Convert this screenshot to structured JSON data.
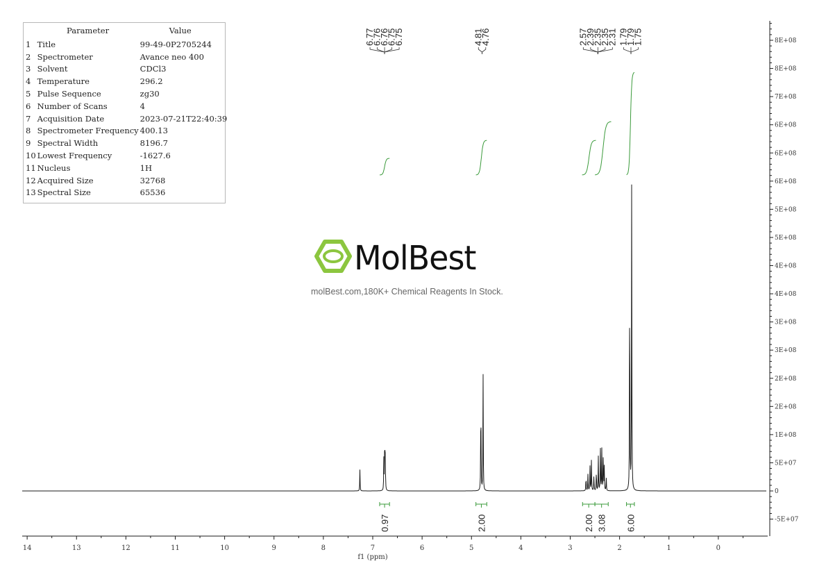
{
  "parameters": {
    "header": {
      "param": "Parameter",
      "value": "Value"
    },
    "rows": [
      {
        "idx": "1",
        "name": "Title",
        "value": "99-49-0P2705244"
      },
      {
        "idx": "2",
        "name": "Spectrometer",
        "value": "Avance neo 400"
      },
      {
        "idx": "3",
        "name": "Solvent",
        "value": "CDCl3"
      },
      {
        "idx": "4",
        "name": "Temperature",
        "value": "296.2"
      },
      {
        "idx": "5",
        "name": "Pulse Sequence",
        "value": "zg30"
      },
      {
        "idx": "6",
        "name": "Number of Scans",
        "value": "4"
      },
      {
        "idx": "7",
        "name": "Acquisition Date",
        "value": "2023-07-21T22:40:39"
      },
      {
        "idx": "8",
        "name": "Spectrometer Frequency",
        "value": "400.13"
      },
      {
        "idx": "9",
        "name": "Spectral Width",
        "value": "8196.7"
      },
      {
        "idx": "10",
        "name": "Lowest Frequency",
        "value": "-1627.6"
      },
      {
        "idx": "11",
        "name": "Nucleus",
        "value": "1H"
      },
      {
        "idx": "12",
        "name": "Acquired Size",
        "value": "32768"
      },
      {
        "idx": "13",
        "name": "Spectral Size",
        "value": "65536"
      }
    ]
  },
  "watermark": {
    "brand": "MolBest",
    "slogan": "molBest.com,180K+ Chemical Reagents In Stock.",
    "color": "#8cc63f"
  },
  "chart_data": {
    "type": "line",
    "xlabel": "f1 (ppm)",
    "x_ticks": [
      "14",
      "13",
      "12",
      "11",
      "10",
      "9",
      "8",
      "7",
      "6",
      "5",
      "4",
      "3",
      "2",
      "1",
      "0"
    ],
    "xlim": [
      14.1,
      -1.0
    ],
    "x_reversed": true,
    "y_ticks": [
      "-5E+07",
      "0",
      "5E+07",
      "1E+08",
      "2E+08",
      "2E+08",
      "3E+08",
      "3E+08",
      "4E+08",
      "4E+08",
      "5E+08",
      "5E+08",
      "6E+08",
      "6E+08",
      "6E+08",
      "7E+08",
      "8E+08",
      "8E+08"
    ],
    "y_tick_values": [
      -50000000,
      0,
      50000000,
      100000000,
      150000000,
      200000000,
      250000000,
      300000000,
      350000000,
      400000000,
      450000000,
      500000000,
      550000000,
      600000000,
      650000000,
      700000000,
      750000000,
      800000000
    ],
    "ylim": [
      -80000000,
      830000000
    ],
    "peaks": [
      {
        "ppm": 7.26,
        "height": 38000000
      },
      {
        "ppm": 6.775,
        "height": 55000000
      },
      {
        "ppm": 6.76,
        "height": 57000000
      },
      {
        "ppm": 6.752,
        "height": 55000000
      },
      {
        "ppm": 6.745,
        "height": 50000000
      },
      {
        "ppm": 4.81,
        "height": 190000000
      },
      {
        "ppm": 4.765,
        "height": 210000000
      },
      {
        "ppm": 2.68,
        "height": 28000000
      },
      {
        "ppm": 2.64,
        "height": 33000000
      },
      {
        "ppm": 2.6,
        "height": 45000000
      },
      {
        "ppm": 2.57,
        "height": 58000000
      },
      {
        "ppm": 2.52,
        "height": 30000000
      },
      {
        "ppm": 2.47,
        "height": 40000000
      },
      {
        "ppm": 2.43,
        "height": 62000000
      },
      {
        "ppm": 2.39,
        "height": 86000000
      },
      {
        "ppm": 2.36,
        "height": 74000000
      },
      {
        "ppm": 2.33,
        "height": 72000000
      },
      {
        "ppm": 2.31,
        "height": 45000000
      },
      {
        "ppm": 2.27,
        "height": 24000000
      },
      {
        "ppm": 1.795,
        "height": 430000000
      },
      {
        "ppm": 1.755,
        "height": 555000000
      }
    ],
    "peak_labels": [
      {
        "group": [
          "6.77",
          "6.76",
          "6.76",
          "6.75",
          "6.75"
        ],
        "center_ppm": 6.76
      },
      {
        "group": [
          "4.81",
          "4.76"
        ],
        "center_ppm": 4.785
      },
      {
        "group": [
          "2.57",
          "2.39",
          "2.35",
          "2.35",
          "2.31"
        ],
        "center_ppm": 2.44
      },
      {
        "group": [
          "1.79",
          "1.79",
          "1.75"
        ],
        "center_ppm": 1.77
      }
    ],
    "integrals": [
      {
        "from": 6.86,
        "to": 6.66,
        "value": "0.97"
      },
      {
        "from": 4.91,
        "to": 4.69,
        "value": "2.00"
      },
      {
        "from": 2.75,
        "to": 2.5,
        "value": "2.00"
      },
      {
        "from": 2.5,
        "to": 2.23,
        "value": "3.08"
      },
      {
        "from": 1.86,
        "to": 1.7,
        "value": "6.00"
      }
    ],
    "colors": {
      "spectrum": "#1a1a1a",
      "integral": "#3a9a3a"
    }
  }
}
